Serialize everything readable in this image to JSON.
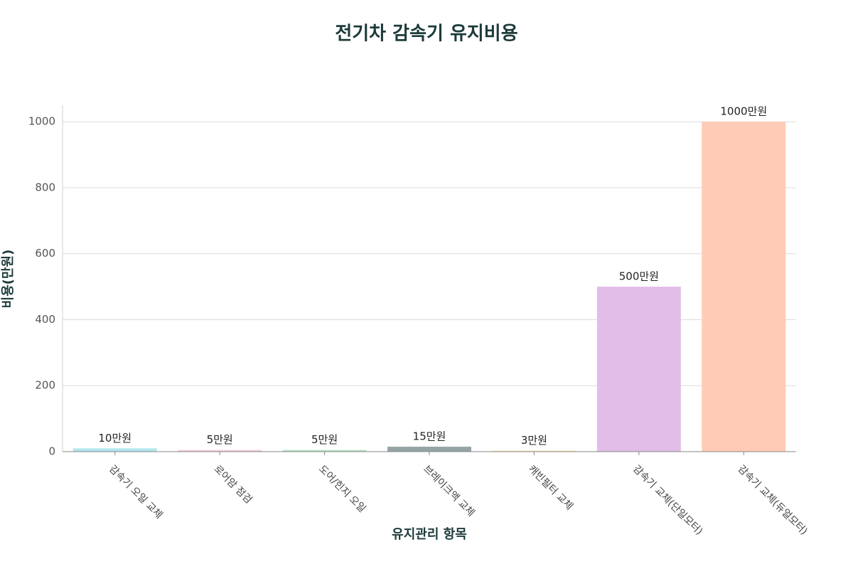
{
  "chart_data": {
    "type": "bar",
    "title": "전기차 감속기 유지비용",
    "x_label": "유지관리 항목",
    "y_label": "비용(만원)",
    "categories": [
      "감속기 오일 교체",
      "로어암 점검",
      "도어/힌지 오일",
      "브레이크액 교체",
      "캐빈필터 교체",
      "감속기 교체(단일모터)",
      "감속기 교체(듀얼모터)"
    ],
    "values": [
      10,
      5,
      5,
      15,
      3,
      500,
      1000
    ],
    "value_labels": [
      "10만원",
      "5만원",
      "5만원",
      "15만원",
      "3만원",
      "500만원",
      "1000만원"
    ],
    "colors": [
      "#b3e6ee",
      "#f7cddc",
      "#b6e2c2",
      "#95a5a6",
      "#f9e9a6",
      "#e2bde8",
      "#ffcbb7"
    ],
    "ylim": [
      0,
      1050
    ],
    "yticks": [
      0,
      200,
      400,
      600,
      800,
      1000
    ],
    "grid": true
  }
}
